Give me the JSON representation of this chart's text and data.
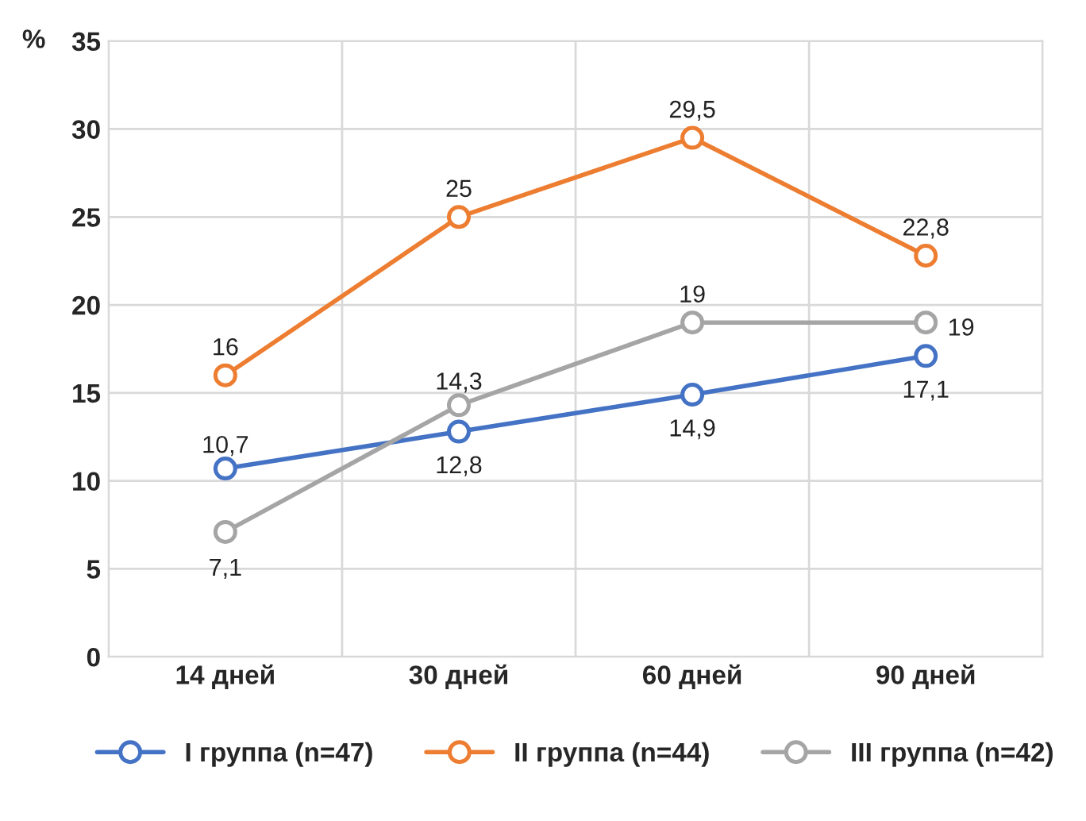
{
  "chart_data": {
    "type": "line",
    "ylabel": "%",
    "categories": [
      "14 дней",
      "30 дней",
      "60 дней",
      "90 дней"
    ],
    "series": [
      {
        "name": "I группа (n=47)",
        "color": "#4472c4",
        "values": [
          10.7,
          12.8,
          14.9,
          17.1
        ],
        "value_labels": [
          "10,7",
          "12,8",
          "14,9",
          "17,1"
        ]
      },
      {
        "name": "II группа (n=44)",
        "color": "#ed7d31",
        "values": [
          16,
          25,
          29.5,
          22.8
        ],
        "value_labels": [
          "16",
          "25",
          "29,5",
          "22,8"
        ]
      },
      {
        "name": "III группа (n=42)",
        "color": "#a5a5a5",
        "values": [
          7.1,
          14.3,
          19,
          19
        ],
        "value_labels": [
          "7,1",
          "14,3",
          "19",
          "19"
        ]
      }
    ],
    "ylim": [
      0,
      35
    ],
    "yticks": [
      0,
      5,
      10,
      15,
      20,
      25,
      30,
      35
    ],
    "grid": true,
    "legend": "bottom",
    "marker": "circle",
    "line_style": "solid"
  }
}
